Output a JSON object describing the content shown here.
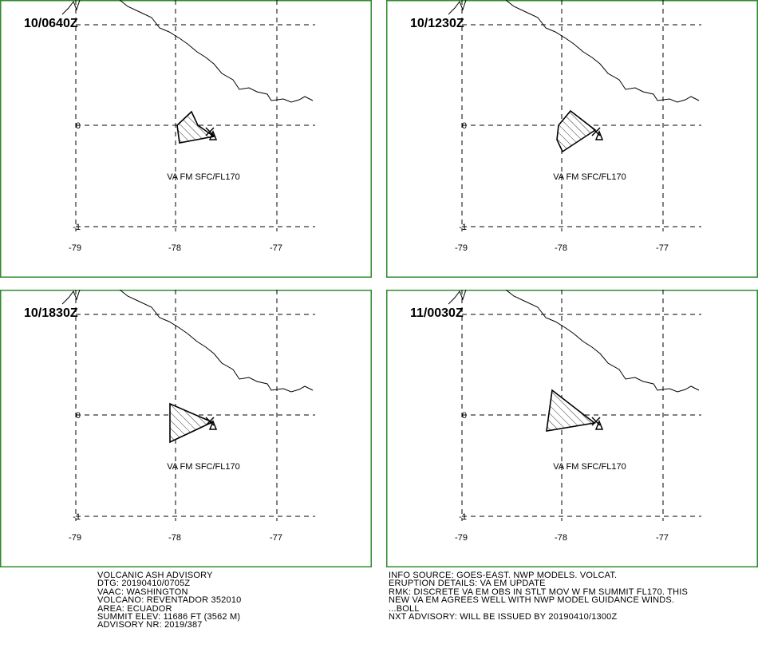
{
  "grid": {
    "lat_labels": [
      "0",
      "-1"
    ],
    "lon_labels": [
      "-79",
      "-78",
      "-77"
    ]
  },
  "panels": [
    {
      "time": "10/0640Z",
      "label": "VA FM SFC/FL170"
    },
    {
      "time": "10/1230Z",
      "label": "VA FM SFC/FL170"
    },
    {
      "time": "10/1830Z",
      "label": "VA FM SFC/FL170"
    },
    {
      "time": "11/0030Z",
      "label": "VA FM SFC/FL170"
    }
  ],
  "advisory_left": [
    "VOLCANIC ASH ADVISORY",
    "DTG: 20190410/0705Z",
    "VAAC: WASHINGTON",
    "VOLCANO: REVENTADOR 352010",
    "AREA: ECUADOR",
    "SUMMIT ELEV: 11686 FT (3562 M)",
    "ADVISORY NR: 2019/387"
  ],
  "advisory_right": [
    "INFO SOURCE: GOES-EAST. NWP MODELS. VOLCAT.",
    "ERUPTION DETAILS: VA EM UPDATE",
    "RMK: DISCRETE VA EM OBS IN STLT MOV W FM SUMMIT FL170. THIS",
    "NEW VA EM AGREES WELL WITH NWP MODEL GUIDANCE WINDS.",
    "...BOLL",
    "NXT ADVISORY: WILL BE ISSUED BY 20190410/1300Z"
  ]
}
